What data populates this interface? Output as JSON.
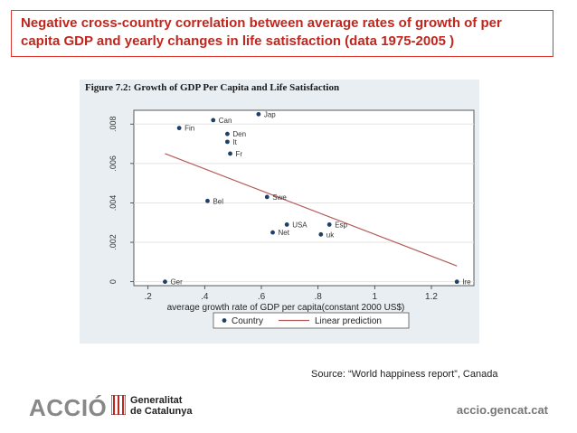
{
  "slide": {
    "title_line1": "Negative cross-country correlation between average rates of growth of per",
    "title_line2": "capita GDP and yearly changes in life satisfaction (data 1975-2005 )",
    "source": "Source: “World happiness report”, Canada",
    "footer": {
      "accio_logo": "ACCIÓ",
      "gen_line1": "Generalitat",
      "gen_line2": "de Catalunya",
      "website": "accio.gencat.cat"
    }
  },
  "chart_data": {
    "type": "scatter",
    "title": "Figure 7.2: Growth of GDP Per Capita and Life Satisfaction",
    "xlabel": "average growth rate of GDP per capita(constant 2000 US$)",
    "ylabel": "",
    "xlim": [
      0.15,
      1.35
    ],
    "ylim": [
      -0.0002,
      0.0087
    ],
    "xticks": [
      0.2,
      0.4,
      0.6,
      0.8,
      1,
      1.2
    ],
    "xtick_labels": [
      ".2",
      ".4",
      ".6",
      ".8",
      "1",
      "1.2"
    ],
    "yticks": [
      0,
      0.002,
      0.004,
      0.006,
      0.008
    ],
    "ytick_labels": [
      "0",
      ".002",
      ".004",
      ".006",
      ".008"
    ],
    "grid": true,
    "legend": {
      "position": "bottom",
      "entries": [
        {
          "label": "Country",
          "kind": "marker"
        },
        {
          "label": "Linear prediction",
          "kind": "line"
        }
      ]
    },
    "series": [
      {
        "name": "Country",
        "points": [
          {
            "label": "Jap",
            "x": 0.59,
            "y": 0.0085
          },
          {
            "label": "Can",
            "x": 0.43,
            "y": 0.0082
          },
          {
            "label": "Fin",
            "x": 0.31,
            "y": 0.0078
          },
          {
            "label": "Den",
            "x": 0.48,
            "y": 0.0075
          },
          {
            "label": "It",
            "x": 0.48,
            "y": 0.0071
          },
          {
            "label": "Fr",
            "x": 0.49,
            "y": 0.0065
          },
          {
            "label": "Swe",
            "x": 0.62,
            "y": 0.0043
          },
          {
            "label": "Bel",
            "x": 0.41,
            "y": 0.0041
          },
          {
            "label": "USA",
            "x": 0.69,
            "y": 0.0029
          },
          {
            "label": "Esp",
            "x": 0.84,
            "y": 0.0029
          },
          {
            "label": "Net",
            "x": 0.64,
            "y": 0.0025
          },
          {
            "label": "uk",
            "x": 0.81,
            "y": 0.0024
          },
          {
            "label": "Ger",
            "x": 0.26,
            "y": 0.0
          },
          {
            "label": "Ire",
            "x": 1.29,
            "y": 0.0
          }
        ]
      },
      {
        "name": "Linear prediction",
        "x": [
          0.26,
          1.29
        ],
        "y": [
          0.0065,
          0.0008
        ],
        "color": "#b55a5a"
      }
    ]
  },
  "colors": {
    "accent": "#c0261d",
    "marker": "#1f3f66",
    "fit_line": "#b55a5a",
    "plot_bg": "#ffffff",
    "figure_bg": "#e8eef2"
  }
}
